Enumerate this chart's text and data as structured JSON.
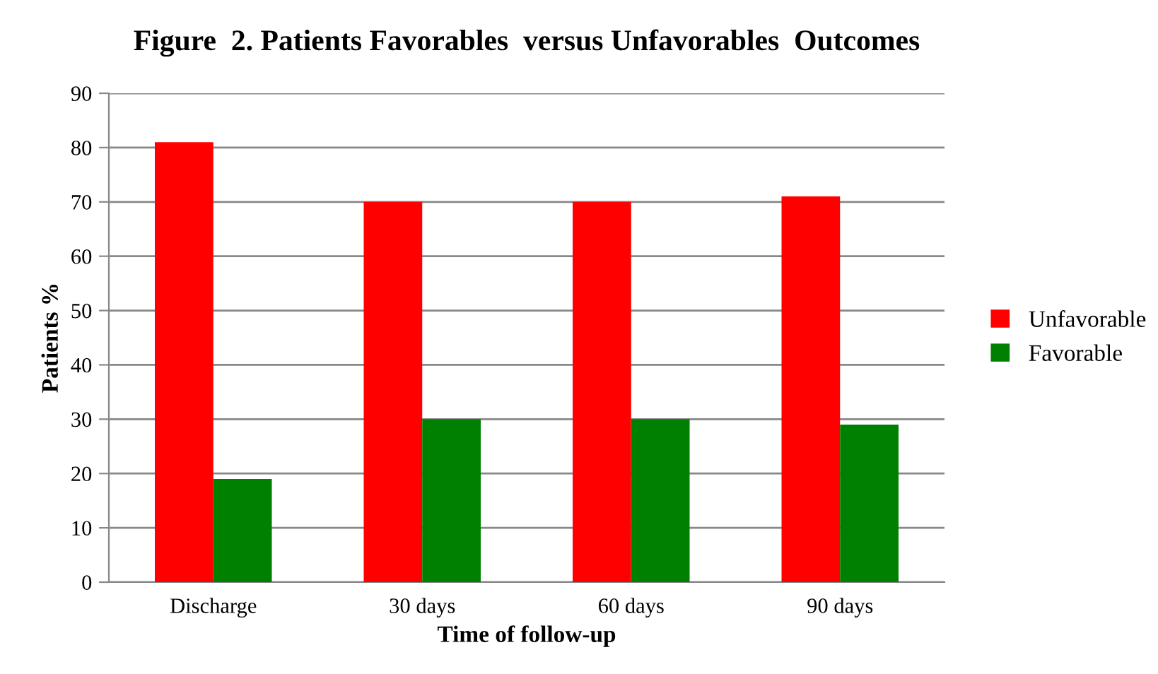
{
  "chart_data": {
    "type": "bar",
    "title": "Figure  2. Patients Favorables  versus Unfavorables  Outcomes",
    "xlabel": "Time of follow-up",
    "ylabel": "Patients %",
    "categories": [
      "Discharge",
      "30 days",
      "60 days",
      "90 days"
    ],
    "series": [
      {
        "name": "Unfavorable",
        "color": "#ff0000",
        "values": [
          81,
          70,
          70,
          71
        ]
      },
      {
        "name": "Favorable",
        "color": "#008000",
        "values": [
          19,
          30,
          30,
          29
        ]
      }
    ],
    "ylim": [
      0,
      90
    ],
    "yticks": [
      0,
      10,
      20,
      30,
      40,
      50,
      60,
      70,
      80,
      90
    ],
    "grid": "y",
    "legend": "right"
  }
}
